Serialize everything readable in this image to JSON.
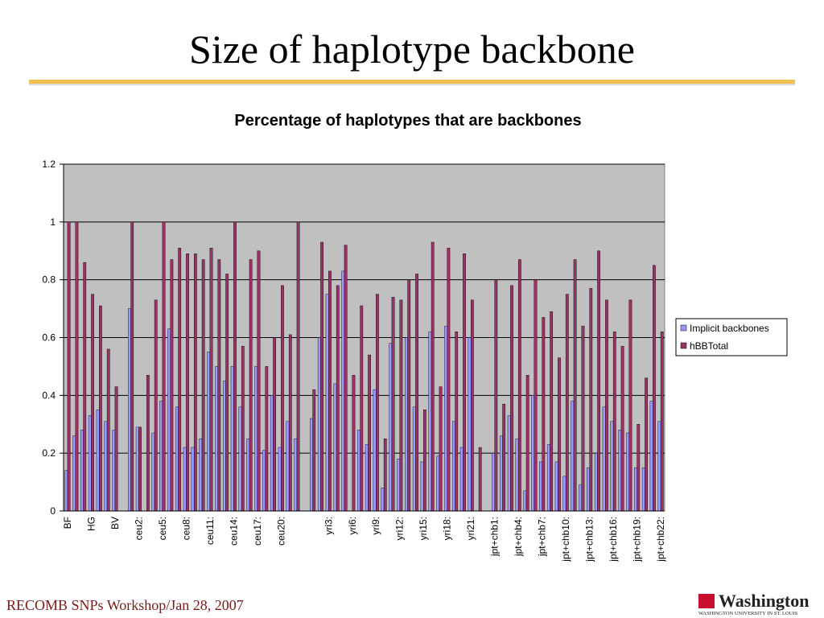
{
  "slide": {
    "title": "Size of haplotype backbone",
    "footer": "RECOMB SNPs Workshop/Jan 28, 2007",
    "logo": {
      "name": "Washington",
      "subtitle": "WASHINGTON UNIVERSITY IN ST. LOUIS"
    }
  },
  "chart_data": {
    "type": "bar",
    "title": "Percentage of haplotypes that are backbones",
    "categories": [
      "BF",
      null,
      null,
      "HG",
      null,
      null,
      "BV",
      null,
      null,
      "ceu2:",
      null,
      null,
      "ceu5:",
      null,
      null,
      "ceu8:",
      null,
      null,
      "ceu11:",
      null,
      null,
      "ceu14:",
      null,
      null,
      "ceu17:",
      null,
      null,
      "ceu20:",
      null,
      null,
      null,
      null,
      null,
      "yri3:",
      null,
      null,
      "yri6:",
      null,
      null,
      "yri9:",
      null,
      null,
      "yri12:",
      null,
      null,
      "yri15:",
      null,
      null,
      "yri18:",
      null,
      null,
      "yri21:",
      null,
      null,
      "jpt+chb1:",
      null,
      null,
      "jpt+chb4:",
      null,
      null,
      "jpt+chb7:",
      null,
      null,
      "jpt+chb10:",
      null,
      null,
      "jpt+chb13:",
      null,
      null,
      "jpt+chb16:",
      null,
      null,
      "jpt+chb19:",
      null,
      null,
      "jpt+chb22:"
    ],
    "series": [
      {
        "name": "Implicit backbones",
        "color": "#9999ff",
        "values": [
          0.14,
          0.26,
          0.28,
          0.33,
          0.35,
          0.31,
          0.28,
          null,
          0.7,
          0.29,
          0,
          0.27,
          0.38,
          0.63,
          0.36,
          0.22,
          0.22,
          0.25,
          0.55,
          0.5,
          0.45,
          0.5,
          0.36,
          0.25,
          0.5,
          0.21,
          0.4,
          0.22,
          0.31,
          0.25,
          null,
          0.32,
          0.6,
          0.75,
          0.44,
          0.83,
          0,
          0.28,
          0.23,
          0.42,
          0.08,
          0.58,
          0.18,
          0.6,
          0.36,
          0.17,
          0.62,
          0.19,
          0.64,
          0.31,
          0.22,
          0.6,
          0,
          null,
          0.2,
          0.26,
          0.33,
          0.25,
          0.07,
          0.4,
          0.17,
          0.23,
          0.17,
          0.12,
          0.38,
          0.09,
          0.15,
          0.2,
          0.36,
          0.31,
          0.28,
          0.27,
          0.15,
          0.15,
          0.38,
          0.31
        ]
      },
      {
        "name": "hBBTotal",
        "color": "#993366",
        "values": [
          1.0,
          1.0,
          0.86,
          0.75,
          0.71,
          0.56,
          0.43,
          null,
          1.0,
          0.29,
          0.47,
          0.73,
          1.0,
          0.87,
          0.91,
          0.89,
          0.89,
          0.87,
          0.91,
          0.87,
          0.82,
          1.0,
          0.57,
          0.87,
          0.9,
          0.5,
          0.6,
          0.78,
          0.61,
          1.0,
          null,
          0.42,
          0.93,
          0.83,
          0.78,
          0.92,
          0.47,
          0.71,
          0.54,
          0.75,
          0.25,
          0.74,
          0.73,
          0.8,
          0.82,
          0.35,
          0.93,
          0.43,
          0.91,
          0.62,
          0.89,
          0.73,
          0.22,
          null,
          0.8,
          0.37,
          0.78,
          0.87,
          0.47,
          0.8,
          0.67,
          0.69,
          0.53,
          0.75,
          0.87,
          0.64,
          0.77,
          0.9,
          0.73,
          0.62,
          0.57,
          0.73,
          0.3,
          0.46,
          0.85,
          0.62
        ]
      }
    ],
    "ylim": [
      0,
      1.2
    ],
    "yticks": [
      0,
      0.2,
      0.4,
      0.6,
      0.8,
      1,
      1.2
    ],
    "grid": true,
    "legend": "right"
  }
}
